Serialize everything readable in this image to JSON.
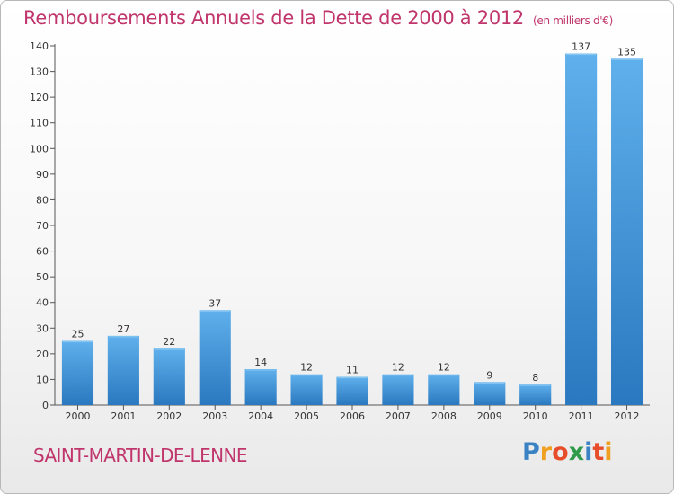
{
  "chart_data": {
    "type": "bar",
    "title": "Remboursements Annuels de la Dette de 2000 à 2012",
    "subtitle": "(en milliers d'€)",
    "categories": [
      "2000",
      "2001",
      "2002",
      "2003",
      "2004",
      "2005",
      "2006",
      "2007",
      "2008",
      "2009",
      "2010",
      "2011",
      "2012"
    ],
    "values": [
      25,
      27,
      22,
      37,
      14,
      12,
      11,
      12,
      12,
      9,
      8,
      137,
      135
    ],
    "xlabel": "",
    "ylabel": "",
    "ylim": [
      0,
      140
    ],
    "yticks": [
      0,
      10,
      20,
      30,
      40,
      50,
      60,
      70,
      80,
      90,
      100,
      110,
      120,
      130,
      140
    ],
    "grid": false,
    "legend": "none",
    "bar_color": "#3d8fd6"
  },
  "footer": {
    "commune": "SAINT-MARTIN-DE-LENNE",
    "logo_letters": [
      "P",
      "r",
      "o",
      "x",
      "i",
      "t",
      "i"
    ],
    "logo_colors": [
      "#3b82c4",
      "#f0a020",
      "#e84d2b",
      "#2e9a4a",
      "#3b82c4",
      "#e84d2b",
      "#f0a020"
    ]
  }
}
